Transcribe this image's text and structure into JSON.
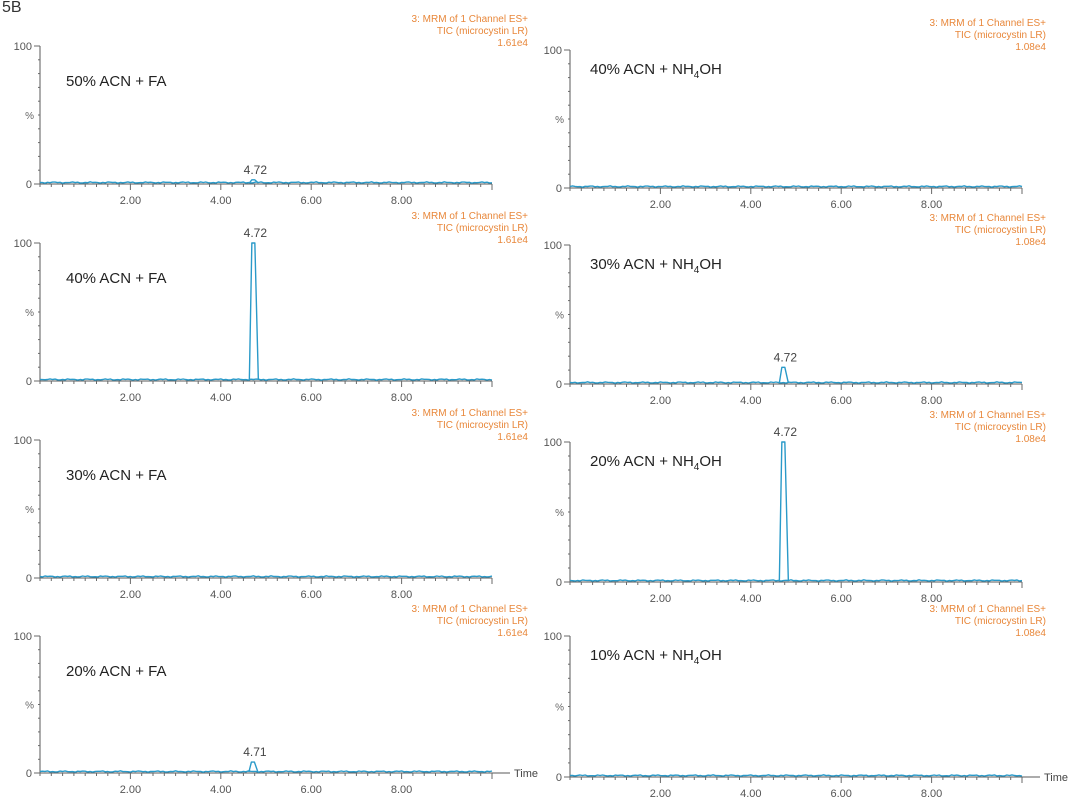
{
  "figure_label": "5B",
  "chart_data": [
    {
      "type": "line",
      "condition_main": "50% ACN + FA",
      "condition_sub": "",
      "condition_tail": "",
      "header": [
        "3: MRM of 1 Channel ES+",
        "TIC (microcystin LR)",
        "1.61e4"
      ],
      "y_labels": [
        "100",
        "%",
        "0"
      ],
      "x_tick_labels": [
        "2.00",
        "4.00",
        "6.00",
        "8.00"
      ],
      "xlim": [
        0,
        10
      ],
      "ylim": [
        0,
        100
      ],
      "peak": {
        "x": 4.72,
        "height": 3,
        "label": "4.72"
      },
      "show_time": false,
      "column": "left"
    },
    {
      "type": "line",
      "condition_main": "40% ACN + FA",
      "condition_sub": "",
      "condition_tail": "",
      "header": [
        "3: MRM of 1 Channel ES+",
        "TIC (microcystin LR)",
        "1.61e4"
      ],
      "y_labels": [
        "100",
        "%",
        "0"
      ],
      "x_tick_labels": [
        "2.00",
        "4.00",
        "6.00",
        "8.00"
      ],
      "xlim": [
        0,
        10
      ],
      "ylim": [
        0,
        100
      ],
      "peak": {
        "x": 4.72,
        "height": 100,
        "label": "4.72"
      },
      "show_time": false,
      "column": "left"
    },
    {
      "type": "line",
      "condition_main": "30% ACN + FA",
      "condition_sub": "",
      "condition_tail": "",
      "header": [
        "3: MRM of 1 Channel ES+",
        "TIC (microcystin LR)",
        "1.61e4"
      ],
      "y_labels": [
        "100",
        "%",
        "0"
      ],
      "x_tick_labels": [
        "2.00",
        "4.00",
        "6.00",
        "8.00"
      ],
      "xlim": [
        0,
        10
      ],
      "ylim": [
        0,
        100
      ],
      "peak": null,
      "show_time": false,
      "column": "left"
    },
    {
      "type": "line",
      "condition_main": "20% ACN + FA",
      "condition_sub": "",
      "condition_tail": "",
      "header": [
        "3: MRM of 1 Channel ES+",
        "TIC (microcystin LR)",
        "1.61e4"
      ],
      "y_labels": [
        "100",
        "%",
        "0"
      ],
      "x_tick_labels": [
        "2.00",
        "4.00",
        "6.00",
        "8.00"
      ],
      "xlim": [
        0,
        10
      ],
      "ylim": [
        0,
        100
      ],
      "peak": {
        "x": 4.71,
        "height": 8,
        "label": "4.71"
      },
      "show_time": true,
      "column": "left"
    },
    {
      "type": "line",
      "condition_main": "40% ACN + NH",
      "condition_sub": "4",
      "condition_tail": "OH",
      "header": [
        "3: MRM of 1 Channel ES+",
        "TIC (microcystin LR)",
        "1.08e4"
      ],
      "y_labels": [
        "100",
        "%",
        "0"
      ],
      "x_tick_labels": [
        "2.00",
        "4.00",
        "6.00",
        "8.00"
      ],
      "xlim": [
        0,
        10
      ],
      "ylim": [
        0,
        100
      ],
      "peak": null,
      "show_time": false,
      "column": "right"
    },
    {
      "type": "line",
      "condition_main": "30% ACN + NH",
      "condition_sub": "4",
      "condition_tail": "OH",
      "header": [
        "3: MRM of 1 Channel ES+",
        "TIC (microcystin LR)",
        "1.08e4"
      ],
      "y_labels": [
        "100",
        "%",
        "0"
      ],
      "x_tick_labels": [
        "2.00",
        "4.00",
        "6.00",
        "8.00"
      ],
      "xlim": [
        0,
        10
      ],
      "ylim": [
        0,
        100
      ],
      "peak": {
        "x": 4.72,
        "height": 12,
        "label": "4.72"
      },
      "show_time": false,
      "column": "right"
    },
    {
      "type": "line",
      "condition_main": "20% ACN + NH",
      "condition_sub": "4",
      "condition_tail": "OH",
      "header": [
        "3: MRM of 1 Channel ES+",
        "TIC (microcystin LR)",
        "1.08e4"
      ],
      "y_labels": [
        "100",
        "%",
        "0"
      ],
      "x_tick_labels": [
        "2.00",
        "4.00",
        "6.00",
        "8.00"
      ],
      "xlim": [
        0,
        10
      ],
      "ylim": [
        0,
        100
      ],
      "peak": {
        "x": 4.72,
        "height": 100,
        "label": "4.72"
      },
      "show_time": false,
      "column": "right"
    },
    {
      "type": "line",
      "condition_main": "10% ACN + NH",
      "condition_sub": "4",
      "condition_tail": "OH",
      "header": [
        "3: MRM of 1 Channel ES+",
        "TIC (microcystin LR)",
        "1.08e4"
      ],
      "y_labels": [
        "100",
        "%",
        "0"
      ],
      "x_tick_labels": [
        "2.00",
        "4.00",
        "6.00",
        "8.00"
      ],
      "xlim": [
        0,
        10
      ],
      "ylim": [
        0,
        100
      ],
      "peak": null,
      "show_time": true,
      "column": "right"
    }
  ],
  "time_label": "Time"
}
